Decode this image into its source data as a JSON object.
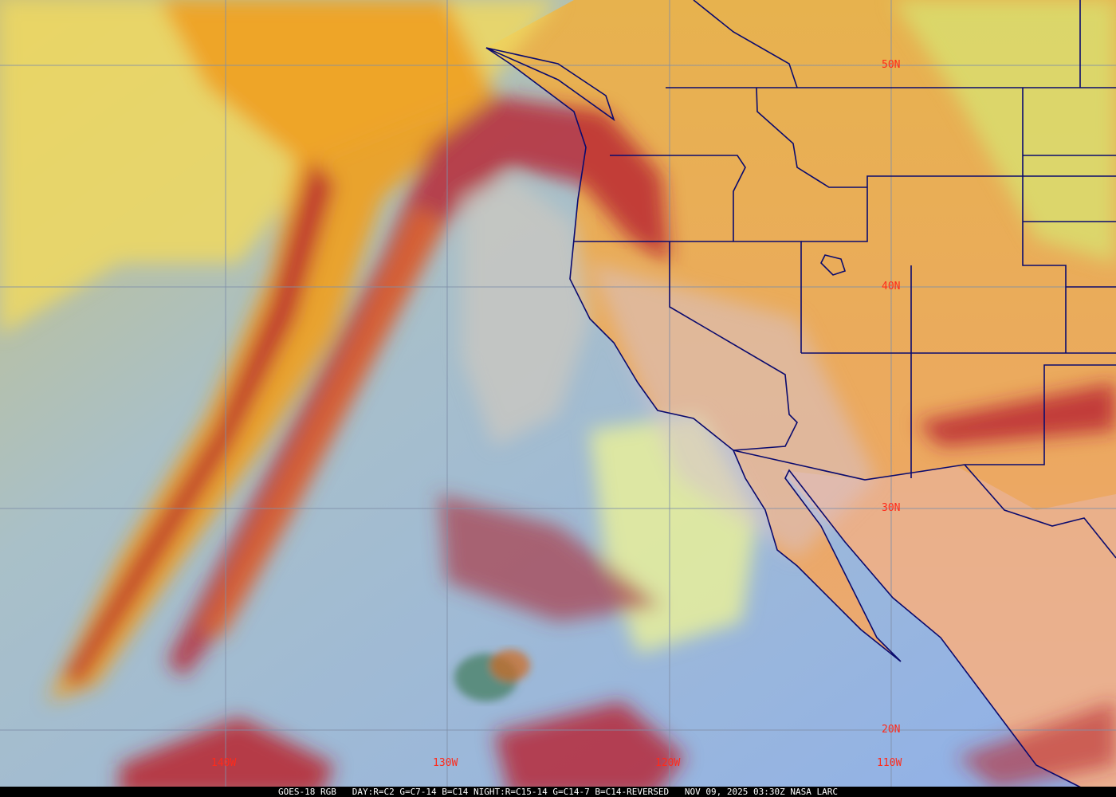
{
  "map": {
    "satellite": "GOES-18",
    "product": "RGB",
    "colors": {
      "ocean": "#9db4de",
      "land": "#eba65a",
      "cloud_high": "#b8232e",
      "cloud_mid": "#f0a020",
      "cloud_low": "#e6e88a",
      "coast": "#0a0a6e",
      "grid": "#7f8fa8",
      "labels": "#ff2a1a"
    },
    "latitude_labels": [
      "50N",
      "40N",
      "30N",
      "20N"
    ],
    "longitude_labels": [
      "140W",
      "130W",
      "120W",
      "110W"
    ]
  },
  "caption": "GOES-18 RGB   DAY:R=C2 G=C7-14 B=C14 NIGHT:R=C15-14 G=C14-7 B=C14-REVERSED   NOV 09, 2025 03:30Z NASA LARC"
}
